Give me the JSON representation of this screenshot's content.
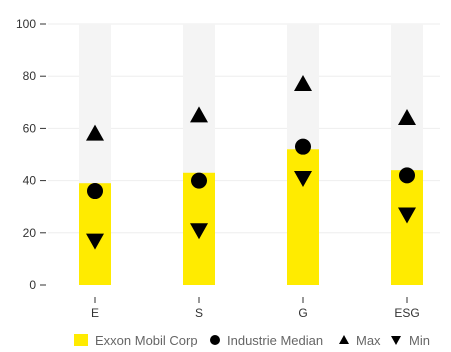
{
  "chart_data": {
    "type": "bar",
    "title": "",
    "categories": [
      "E",
      "S",
      "G",
      "ESG"
    ],
    "ylim": [
      0,
      100
    ],
    "yticks": [
      0,
      20,
      40,
      60,
      80,
      100
    ],
    "grid": true,
    "legend_position": "bottom",
    "series": [
      {
        "name": "Exxon Mobil Corp",
        "kind": "bar",
        "color": "#FFEB00",
        "values": [
          39,
          43,
          52,
          44
        ]
      },
      {
        "name": "Industrie Median",
        "kind": "marker-circle",
        "color": "#000000",
        "values": [
          36,
          40,
          53,
          42
        ]
      },
      {
        "name": "Max",
        "kind": "marker-triangle-up",
        "color": "#000000",
        "values": [
          58,
          65,
          77,
          64
        ]
      },
      {
        "name": "Min",
        "kind": "marker-triangle-down",
        "color": "#000000",
        "values": [
          17,
          21,
          41,
          27
        ]
      }
    ],
    "background_range_color": "#F4F4F4",
    "background_range_max": 100
  },
  "legend": {
    "bar_label": "Exxon Mobil Corp",
    "median_label": "Industrie Median",
    "max_label": "Max",
    "min_label": "Min"
  }
}
